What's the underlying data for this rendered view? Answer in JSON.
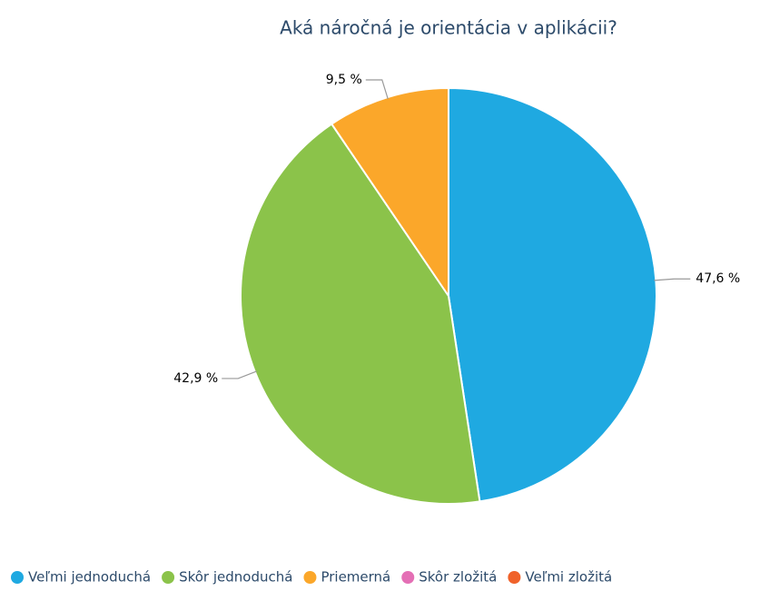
{
  "chart_data": {
    "type": "pie",
    "title": "Aká náročná je orientácia v aplikácii?",
    "categories": [
      "Veľmi jednoduchá",
      "Skôr jednoduchá",
      "Priemerná",
      "Skôr zložitá",
      "Veľmi zložitá"
    ],
    "values": [
      47.6,
      42.9,
      9.5,
      0,
      0
    ],
    "value_labels": [
      "47,6 %",
      "42,9 %",
      "9,5 %",
      null,
      null
    ],
    "colors": [
      "#1fa9e1",
      "#8bc34a",
      "#fba72a",
      "#e46fb5",
      "#f0622a"
    ],
    "legend": "bottom"
  }
}
